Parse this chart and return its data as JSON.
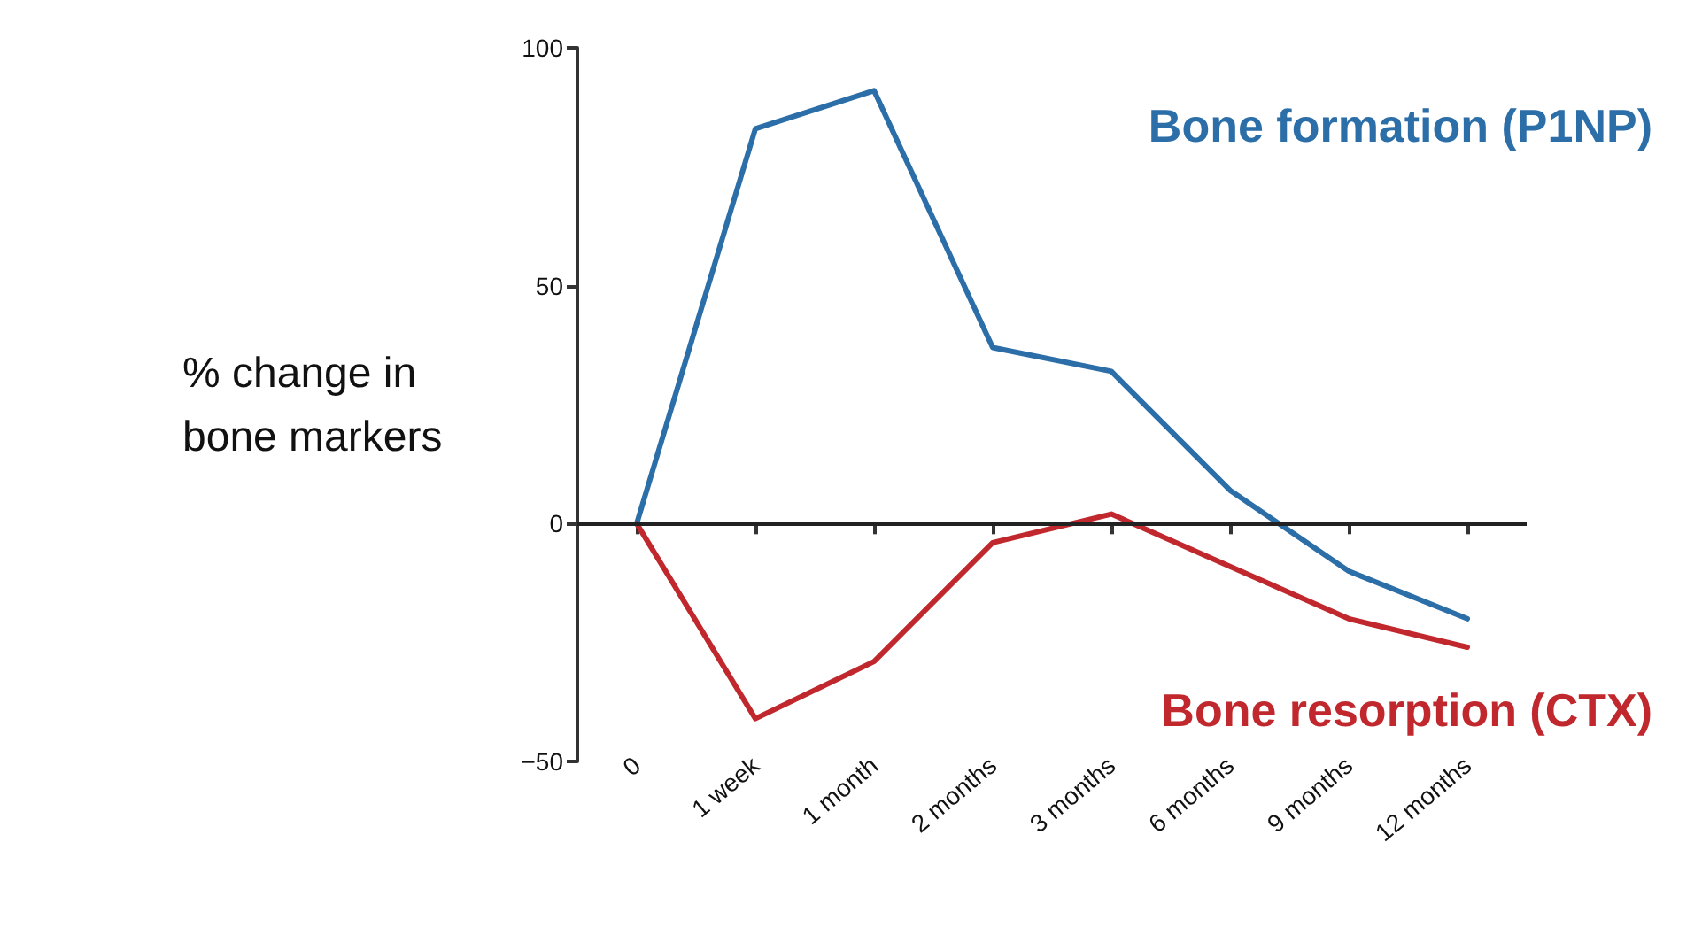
{
  "chart_data": {
    "type": "line",
    "ylabel": "% change in bone markers",
    "categories": [
      "0",
      "1 week",
      "1 month",
      "2 months",
      "3 months",
      "6 months",
      "9 months",
      "12 months"
    ],
    "series": [
      {
        "name": "Bone formation (P1NP)",
        "color": "#2b6ea8",
        "values": [
          0,
          83,
          91,
          37,
          32,
          7,
          -10,
          -20
        ]
      },
      {
        "name": "Bone resorption (CTX)",
        "color": "#c0282d",
        "values": [
          0,
          -41,
          -29,
          -4,
          2,
          -9,
          -20,
          -26
        ]
      }
    ],
    "ref_lines": [
      {
        "axis": "y",
        "value": 0,
        "color": "#222222"
      }
    ],
    "ylim": [
      -50,
      100
    ],
    "yticks": [
      -50,
      0,
      50,
      100
    ],
    "grid": false,
    "legend": false,
    "marker": "none",
    "line_style": "solid"
  }
}
